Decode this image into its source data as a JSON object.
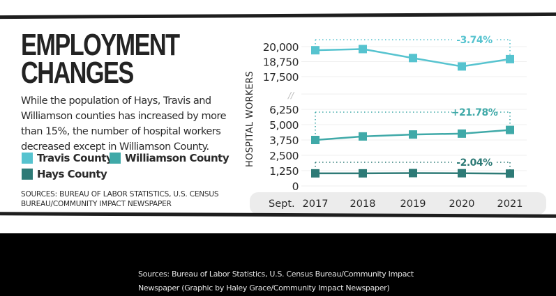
{
  "graphic": {
    "title_line1": "EMPLOYMENT",
    "title_line2": "CHANGES",
    "description": "While the population of Hays, Travis and Williamson counties has increased by more than 15%, the number of hospital workers decreased except in Williamson County.",
    "sources": "SOURCES: BUREAU OF LABOR STATISTICS, U.S. CENSUS BUREAU/COMMUNITY IMPACT NEWSPAPER"
  },
  "legend": [
    {
      "label": "Travis County",
      "color": "#56c3cf"
    },
    {
      "label": "Williamson County",
      "color": "#3fa9a8"
    },
    {
      "label": "Hays County",
      "color": "#2d7a76"
    }
  ],
  "caption": "Sources: Bureau of Labor Statistics, U.S. Census Bureau/Community Impact Newspaper (Graphic by Haley Grace/Community Impact Newspaper)",
  "chart_data": {
    "type": "line",
    "title": "EMPLOYMENT CHANGES",
    "xlabel": "Sept.",
    "ylabel": "HOSPITAL WORKERS",
    "categories": [
      "2017",
      "2018",
      "2019",
      "2020",
      "2021"
    ],
    "axis_break": true,
    "upper_ylim": [
      17500,
      20000
    ],
    "upper_ticks": [
      "20,000",
      "18,750",
      "17,500"
    ],
    "upper_tick_values": [
      20000,
      18750,
      17500
    ],
    "lower_ylim": [
      0,
      6250
    ],
    "lower_ticks": [
      "6,250",
      "5,000",
      "3,750",
      "2,500",
      "1,250",
      "0"
    ],
    "lower_tick_values": [
      6250,
      5000,
      3750,
      2500,
      1250,
      0
    ],
    "grid": true,
    "legend_position": "bottom-left",
    "series": [
      {
        "name": "Travis County",
        "panel": "upper",
        "color": "#56c3cf",
        "values": [
          19700,
          19800,
          19050,
          18350,
          18960
        ],
        "change_label": "-3.74%"
      },
      {
        "name": "Williamson County",
        "panel": "lower",
        "color": "#3fa9a8",
        "values": [
          3750,
          4040,
          4200,
          4270,
          4570
        ],
        "change_label": "+21.78%"
      },
      {
        "name": "Hays County",
        "panel": "lower",
        "color": "#2d7a76",
        "values": [
          1030,
          1030,
          1050,
          1040,
          1010
        ],
        "change_label": "-2.04%"
      }
    ]
  }
}
